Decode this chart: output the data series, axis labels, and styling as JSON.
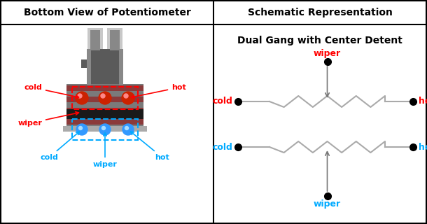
{
  "title_left": "Bottom View of Potentiometer",
  "title_right": "Schematic Representation",
  "schematic_title": "Dual Gang with Center Detent",
  "red_color": "#ff0000",
  "blue_color": "#00aaff",
  "black": "#000000",
  "white": "#ffffff",
  "light_gray": "#c8c8c8",
  "mid_gray": "#888888",
  "dark_gray": "#555555",
  "body_gray": "#666666",
  "shaft_light": "#b0b0b0",
  "red_terminal": "#cc2200",
  "blue_terminal": "#3399ff",
  "brown_stripe": "#8b3a3a",
  "resistor_line": "#aaaaaa",
  "wiper_top_label_color": "#ff0000",
  "wiper_bottom_label_color": "#00aaff"
}
